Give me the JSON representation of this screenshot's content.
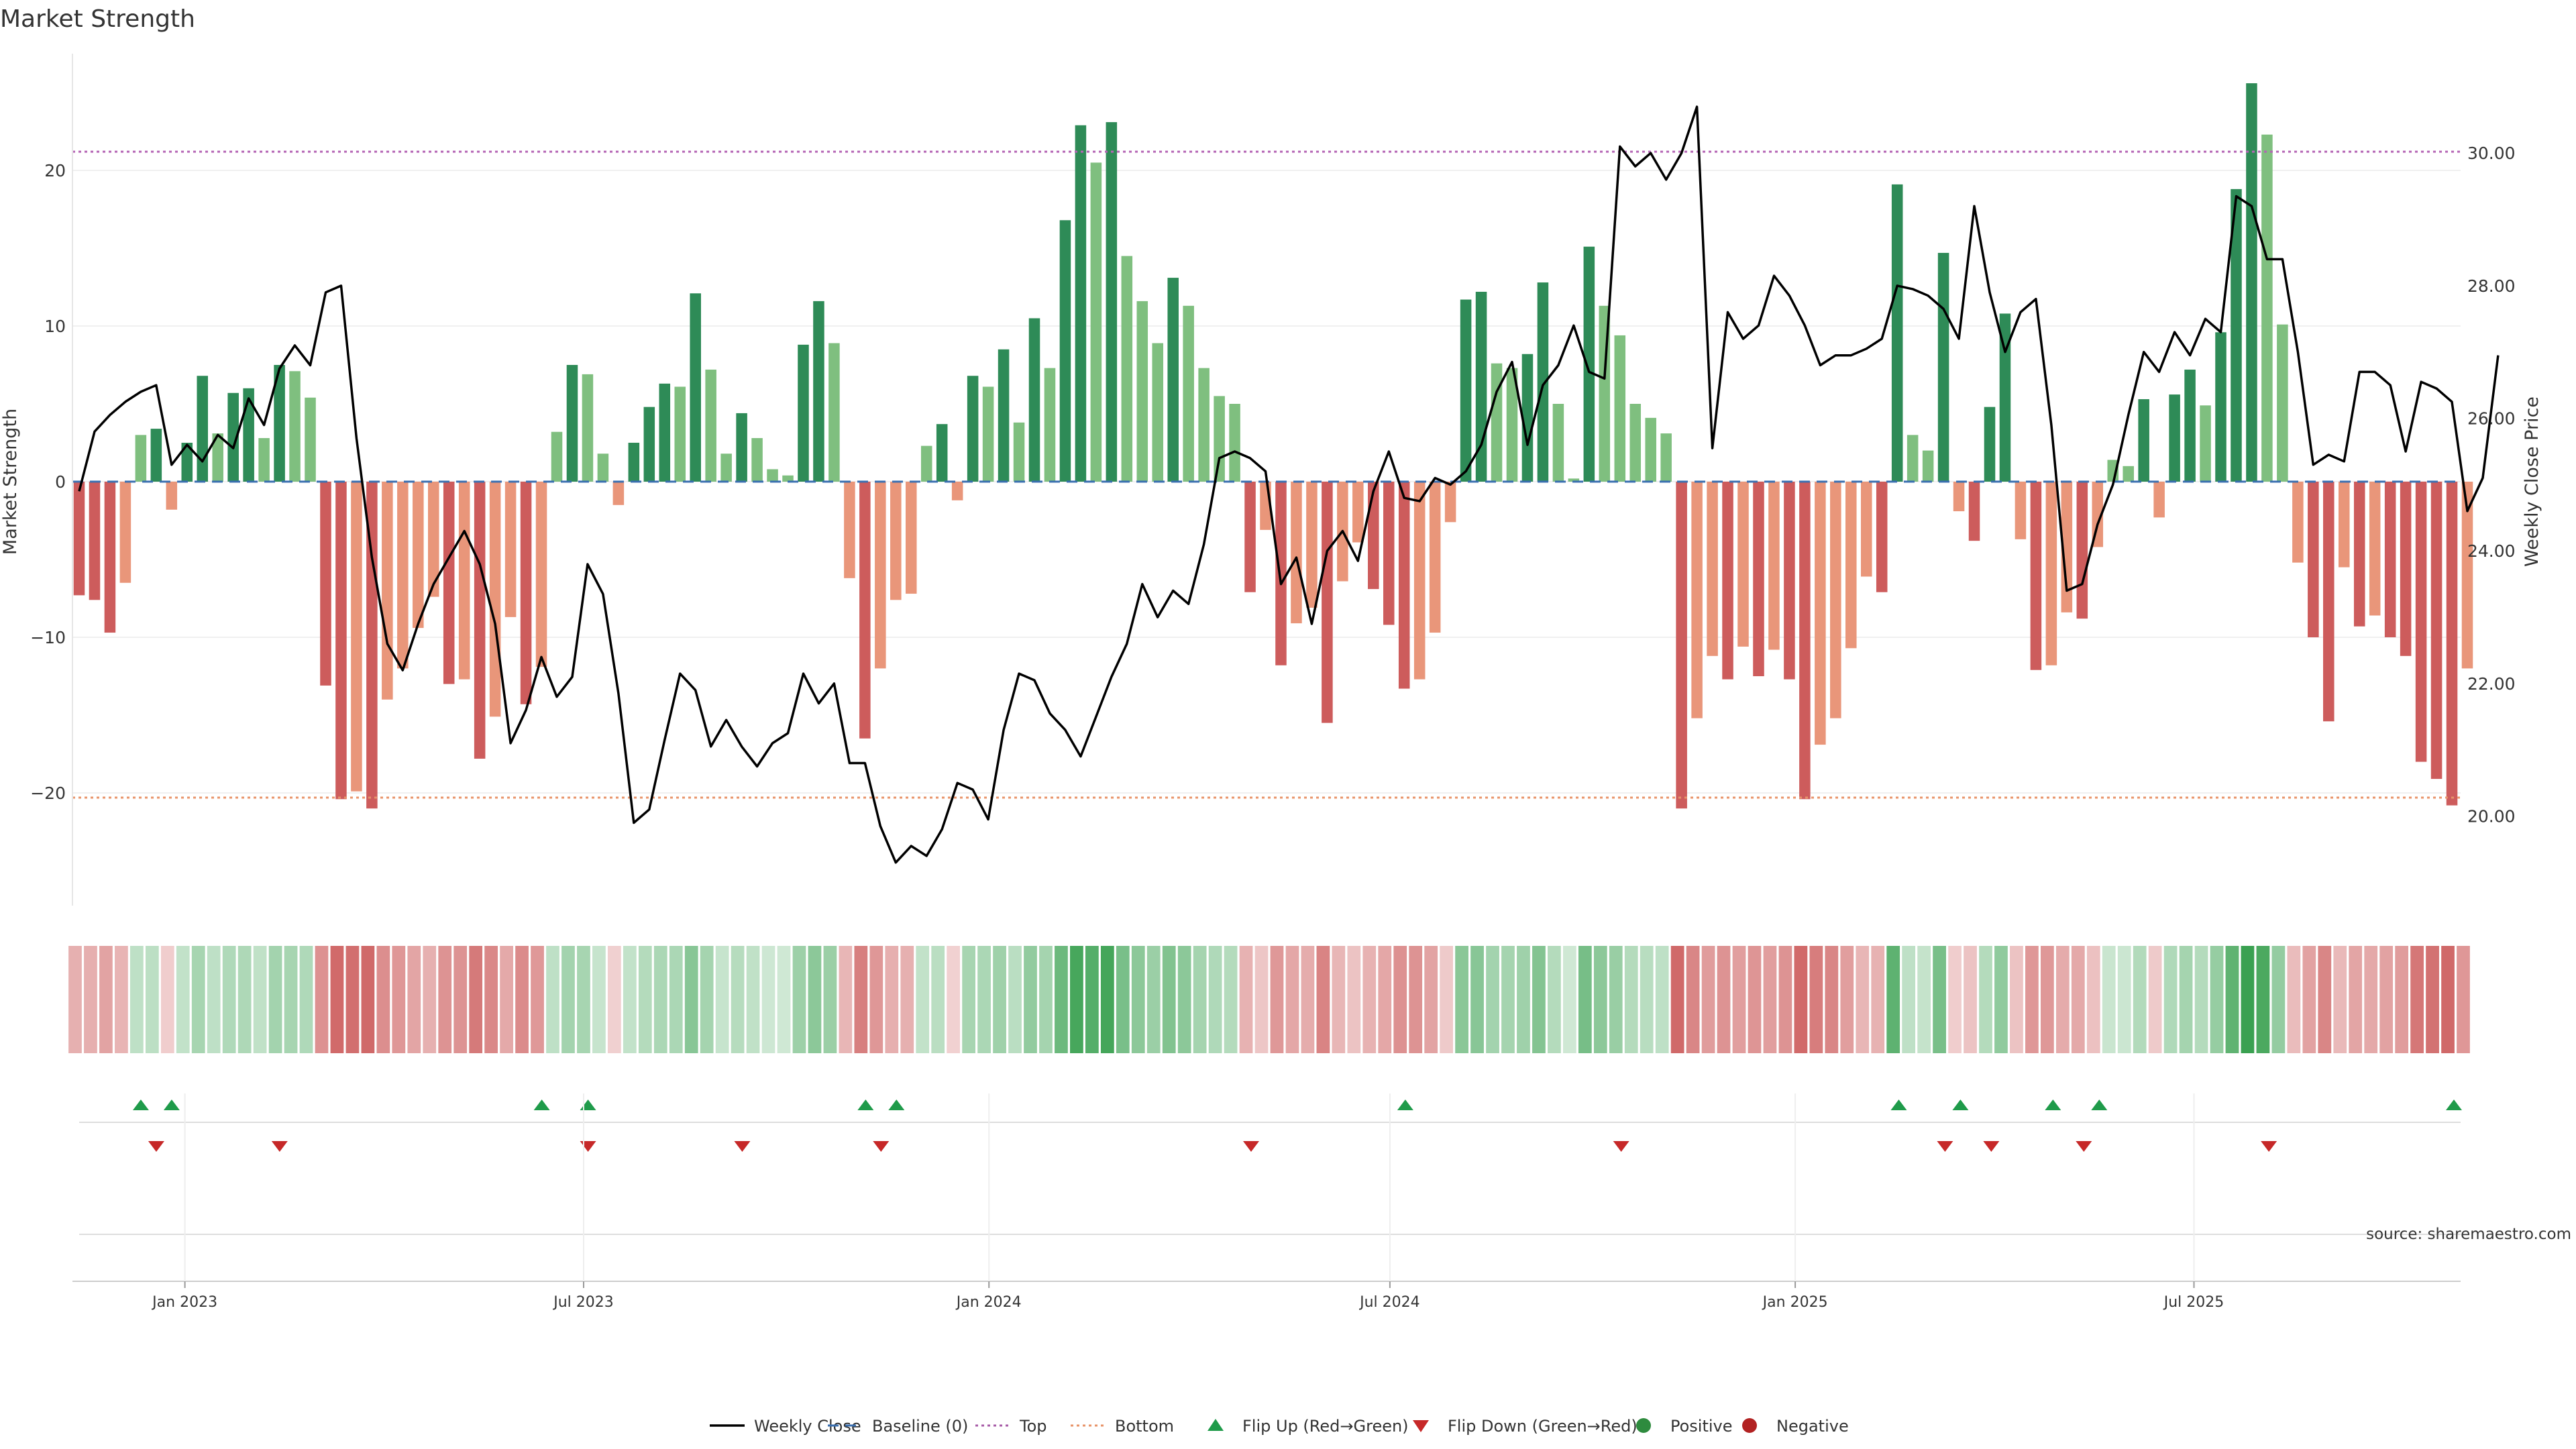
{
  "chart_data": {
    "type": "bar",
    "title": "Market Strength",
    "ylabel_left": "Market Strength",
    "ylabel_right": "Weekly Close Price",
    "ylim_left": [
      -28,
      28
    ],
    "ylim_right": [
      18.65,
      31.5
    ],
    "yticks_left": [
      20,
      10,
      0,
      -10,
      -20
    ],
    "yticks_left_labels": [
      "20",
      "10",
      "0",
      "−10",
      "−20"
    ],
    "yticks_right": [
      30,
      28,
      26,
      24,
      22,
      20
    ],
    "yticks_right_labels": [
      "30.00",
      "28.00",
      "26.00",
      "24.00",
      "22.00",
      "20.00"
    ],
    "top_threshold": 21.2,
    "bottom_threshold": -20.3,
    "x_start": "2022-11-14",
    "x_end": "2025-10-27",
    "xticks": [
      {
        "date": "2023-01-01",
        "label": "Jan 2023"
      },
      {
        "date": "2023-07-01",
        "label": "Jul 2023"
      },
      {
        "date": "2024-01-01",
        "label": "Jan 2024"
      },
      {
        "date": "2024-07-01",
        "label": "Jul 2024"
      },
      {
        "date": "2025-01-01",
        "label": "Jan 2025"
      },
      {
        "date": "2025-07-01",
        "label": "Jul 2025"
      }
    ],
    "strength": [
      -7.3,
      -7.6,
      -9.7,
      -6.5,
      3,
      3.4,
      -1.8,
      2.5,
      6.8,
      3.1,
      5.7,
      6,
      2.8,
      7.5,
      7.1,
      5.4,
      -13.1,
      -20.4,
      -19.9,
      -21,
      -14,
      -12,
      -9.4,
      -7.4,
      -13,
      -12.7,
      -17.8,
      -15.1,
      -8.7,
      -14.3,
      -11.9,
      3.2,
      7.5,
      6.9,
      1.8,
      -1.5,
      2.5,
      4.8,
      6.3,
      6.1,
      12.1,
      7.2,
      1.8,
      4.4,
      2.8,
      0.8,
      0.4,
      8.8,
      11.6,
      8.9,
      -6.2,
      -16.5,
      -12,
      -7.6,
      -7.2,
      2.3,
      3.7,
      -1.2,
      6.8,
      6.1,
      8.5,
      3.8,
      10.5,
      7.3,
      16.8,
      22.9,
      20.5,
      23.1,
      14.5,
      11.6,
      8.9,
      13.1,
      11.3,
      7.3,
      5.5,
      5,
      -7.1,
      -3.1,
      -11.8,
      -9.1,
      -8.1,
      -15.5,
      -6.4,
      -3.9,
      -6.9,
      -9.2,
      -13.3,
      -12.7,
      -9.7,
      -2.6,
      11.7,
      12.2,
      7.6,
      7.3,
      8.2,
      12.8,
      5,
      0.2,
      15.1,
      11.3,
      9.4,
      5,
      4.1,
      3.1,
      -21,
      -15.2,
      -11.2,
      -12.7,
      -10.6,
      -12.5,
      -10.8,
      -12.7,
      -20.4,
      -16.9,
      -15.2,
      -10.7,
      -6.1,
      -7.1,
      19.1,
      3,
      2,
      14.7,
      -1.9,
      -3.8,
      4.8,
      10.8,
      -3.7,
      -12.1,
      -11.8,
      -8.4,
      -8.8,
      -4.2,
      1.4,
      1,
      5.3,
      -2.3,
      5.6,
      7.2,
      4.9,
      9.6,
      18.8,
      25.6,
      22.3,
      10.1,
      -5.2,
      -10,
      -15.4,
      -5.5,
      -9.3,
      -8.6,
      -10,
      -11.2,
      -18,
      -19.1,
      -20.8,
      -12
    ],
    "close": [
      24.9,
      25.8,
      26.05,
      26.25,
      26.4,
      26.5,
      25.3,
      25.6,
      25.35,
      25.75,
      25.55,
      26.3,
      25.9,
      26.75,
      27.1,
      26.8,
      27.9,
      28,
      25.7,
      23.9,
      22.6,
      22.2,
      22.9,
      23.5,
      23.9,
      24.3,
      23.8,
      22.9,
      21.1,
      21.6,
      22.4,
      21.8,
      22.1,
      23.8,
      23.35,
      21.85,
      19.9,
      20.1,
      21.15,
      22.15,
      21.9,
      21.05,
      21.45,
      21.05,
      20.75,
      21.1,
      21.25,
      22.15,
      21.7,
      22.0,
      20.8,
      20.8,
      19.85,
      19.3,
      19.55,
      19.4,
      19.8,
      20.5,
      20.4,
      19.95,
      21.3,
      22.15,
      22.05,
      21.55,
      21.3,
      20.9,
      21.5,
      22.1,
      22.6,
      23.5,
      23.0,
      23.4,
      23.2,
      24.1,
      25.4,
      25.5,
      25.4,
      25.2,
      23.5,
      23.9,
      22.9,
      24.0,
      24.3,
      23.85,
      24.9,
      25.5,
      24.8,
      24.75,
      25.1,
      25.0,
      25.2,
      25.6,
      26.4,
      26.85,
      25.6,
      26.5,
      26.8,
      27.4,
      26.7,
      26.6,
      30.1,
      29.8,
      30.0,
      29.6,
      30.0,
      30.7,
      25.55,
      27.6,
      27.2,
      27.4,
      28.15,
      27.85,
      27.4,
      26.8,
      26.95,
      26.95,
      27.05,
      27.2,
      28.0,
      27.95,
      27.85,
      27.65,
      27.2,
      29.2,
      27.9,
      27.0,
      27.6,
      27.8,
      25.9,
      23.4,
      23.5,
      24.4,
      25.0,
      26.05,
      27.0,
      26.7,
      27.3,
      26.95,
      27.5,
      27.3,
      29.35,
      29.2,
      28.4,
      28.4,
      27.0,
      25.3,
      25.45,
      25.35,
      26.7,
      26.7,
      26.5,
      25.5,
      26.55,
      26.45,
      26.25,
      24.6,
      25.1,
      26.95
    ],
    "flips_up": [
      "2022-12-12",
      "2022-12-26",
      "2023-06-12",
      "2023-07-03",
      "2023-11-06",
      "2023-11-20",
      "2024-07-08",
      "2025-02-17",
      "2025-03-17",
      "2025-04-28",
      "2025-05-19",
      "2025-10-27"
    ],
    "flips_down": [
      "2022-12-19",
      "2023-02-13",
      "2023-07-03",
      "2023-09-11",
      "2023-11-13",
      "2024-04-29",
      "2024-10-14",
      "2025-03-10",
      "2025-03-31",
      "2025-05-12",
      "2025-08-04"
    ],
    "legend": [
      {
        "label": "Weekly Close",
        "kind": "line",
        "color": "#000000"
      },
      {
        "label": "Baseline (0)",
        "kind": "dash",
        "color": "#3a6fb0"
      },
      {
        "label": "Top",
        "kind": "dot",
        "color": "#a85da8"
      },
      {
        "label": "Bottom",
        "kind": "dot",
        "color": "#e8946a"
      },
      {
        "label": "Flip Up (Red→Green)",
        "kind": "tri-up",
        "color": "#1f9b4a"
      },
      {
        "label": "Flip Down (Green→Red)",
        "kind": "tri-down",
        "color": "#c62828"
      },
      {
        "label": "Positive",
        "kind": "circle",
        "color": "#2e8b3e"
      },
      {
        "label": "Negative",
        "kind": "circle",
        "color": "#b22222"
      }
    ],
    "source": "source: sharemaestro.com"
  },
  "colors": {
    "pos_dark": "#2e8b57",
    "pos_light": "#7fbf7f",
    "neg_dark": "#cd5c5c",
    "neg_light": "#e9967a",
    "top_line": "#b565b5",
    "bottom_line": "#e8946a",
    "baseline": "#3a6fb0",
    "close_line": "#000000",
    "flip_up": "#1f9b4a",
    "flip_down": "#c62828"
  }
}
